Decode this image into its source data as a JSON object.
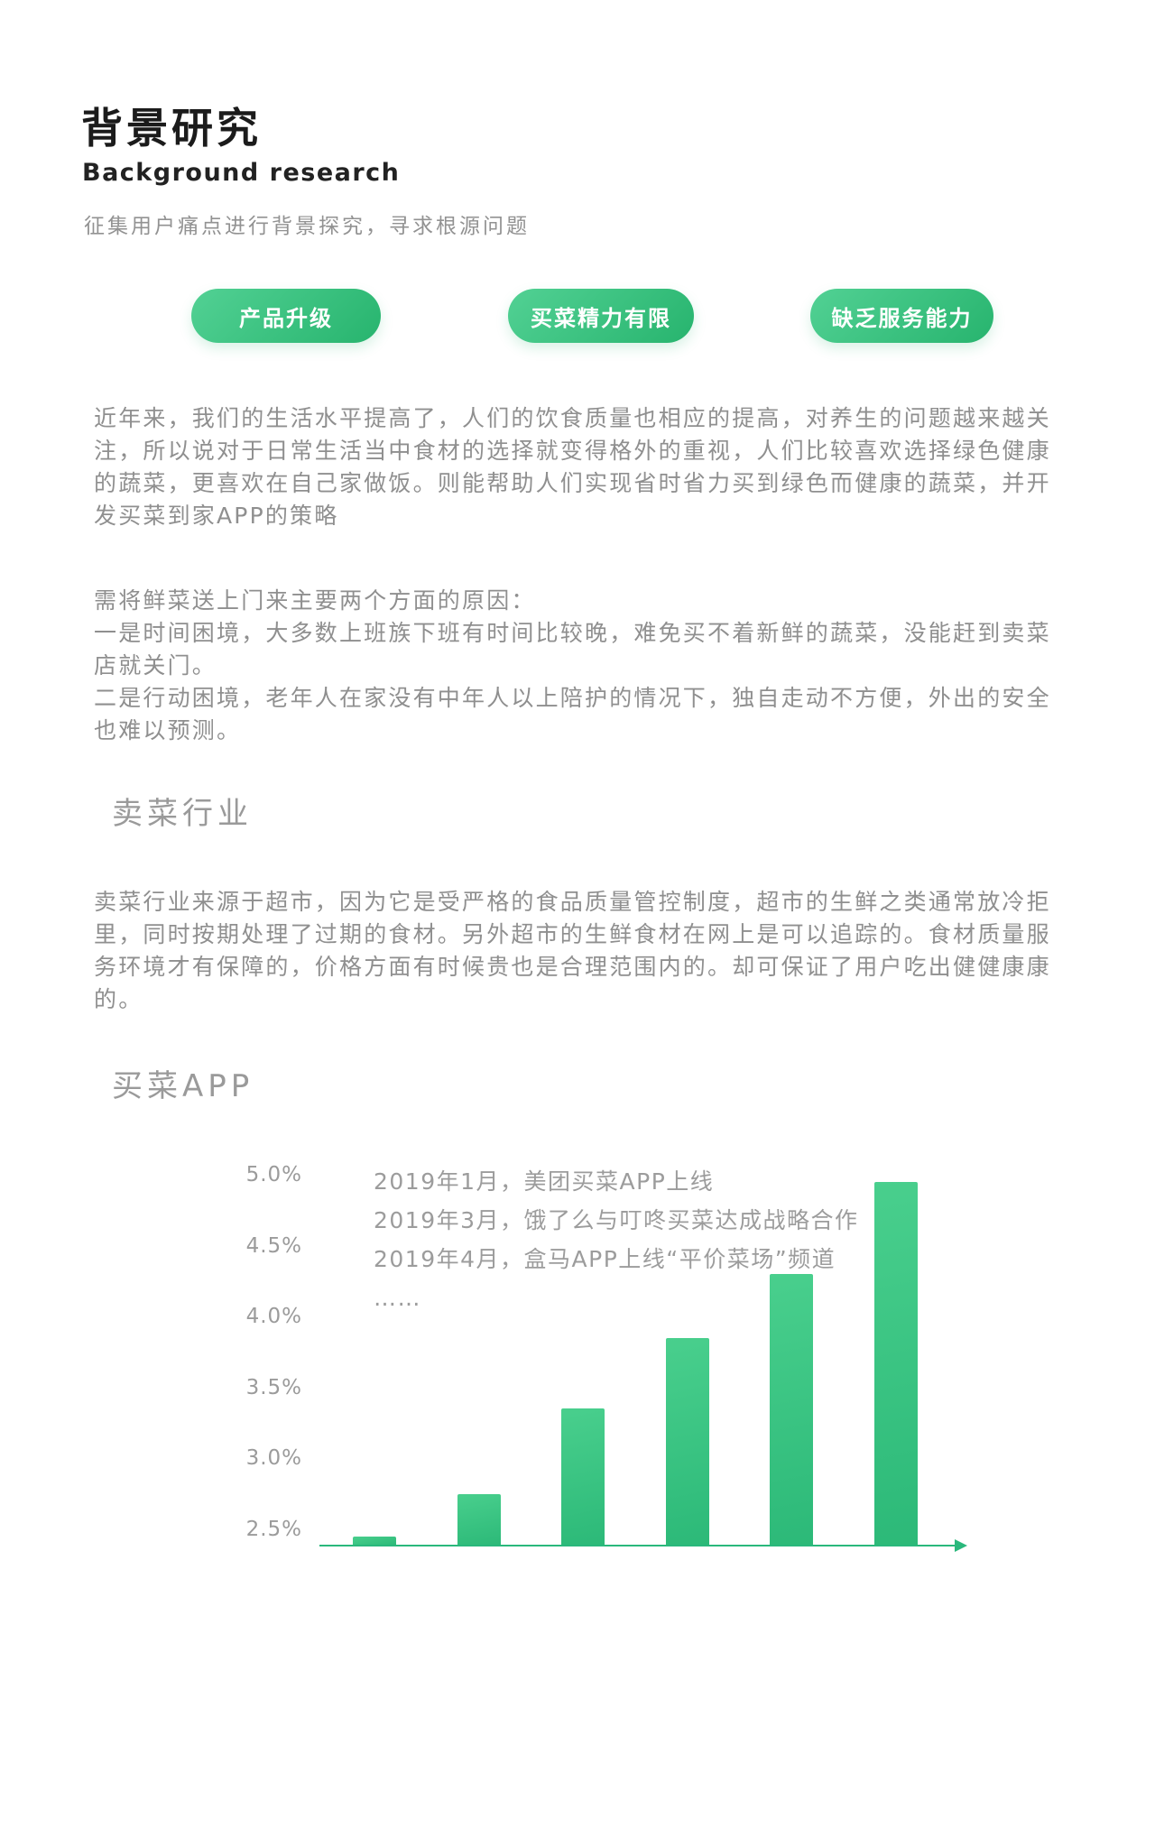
{
  "header": {
    "title": "背景研究",
    "subtitle": "Background research",
    "description": "征集用户痛点进行背景探究，寻求根源问题"
  },
  "tags": [
    {
      "label": "产品升级"
    },
    {
      "label": "买菜精力有限"
    },
    {
      "label": "缺乏服务能力"
    }
  ],
  "paragraphs": {
    "intro": "近年来，我们的生活水平提高了，人们的饮食质量也相应的提高，对养生的问题越来越关注，所以说对于日常生活当中食材的选择就变得格外的重视，人们比较喜欢选择绿色健康的蔬菜，更喜欢在自己家做饭。则能帮助人们实现省时省力买到绿色而健康的蔬菜，并开发买菜到家APP的策略",
    "reasons": [
      "需将鲜菜送上门来主要两个方面的原因：",
      "一是时间困境，大多数上班族下班有时间比较晚，难免买不着新鲜的蔬菜，没能赶到卖菜店就关门。",
      "二是行动困境，老年人在家没有中年人以上陪护的情况下，独自走动不方便，外出的安全也难以预测。"
    ]
  },
  "sections": {
    "industry": {
      "heading": "卖菜行业",
      "body": "卖菜行业来源于超市，因为它是受严格的食品质量管控制度，超市的生鲜之类通常放冷拒里，同时按期处理了过期的食材。另外超市的生鲜食材在网上是可以追踪的。食材质量服务环境才有保障的，价格方面有时候贵也是合理范围内的。却可保证了用户吃出健健康康的。"
    },
    "app": {
      "heading": "买菜APP"
    }
  },
  "colors": {
    "accent_green": "#2bb673",
    "pill_gradient_start": "#52d194",
    "pill_gradient_end": "#27b46e",
    "bar_gradient_start": "#49cf8d",
    "bar_gradient_end": "#2cb978",
    "axis_green": "#2ab87c",
    "title_text": "#1b1b1b",
    "body_text_grey": "#8f8f8f",
    "heading_grey": "#9a9a9a"
  },
  "chart_data": {
    "type": "bar",
    "title": "",
    "categories": [
      "",
      "",
      "",
      "",
      "",
      ""
    ],
    "values": [
      2.45,
      2.75,
      3.35,
      3.85,
      4.3,
      4.95
    ],
    "unit": "%",
    "xlabel": "",
    "ylabel": "",
    "yticks": [
      "5.0%",
      "4.5%",
      "4.0%",
      "3.5%",
      "3.0%",
      "2.5%"
    ],
    "ylim": [
      2.38,
      5.1
    ],
    "grid": false,
    "legend": false,
    "axis_style": "x-axis-arrow-right",
    "annotations": [
      "2019年1月，美团买菜APP上线",
      "2019年3月，饿了么与叮咚买菜达成战略合作",
      "2019年4月，盒马APP上线“平价菜场”频道",
      "……"
    ]
  }
}
